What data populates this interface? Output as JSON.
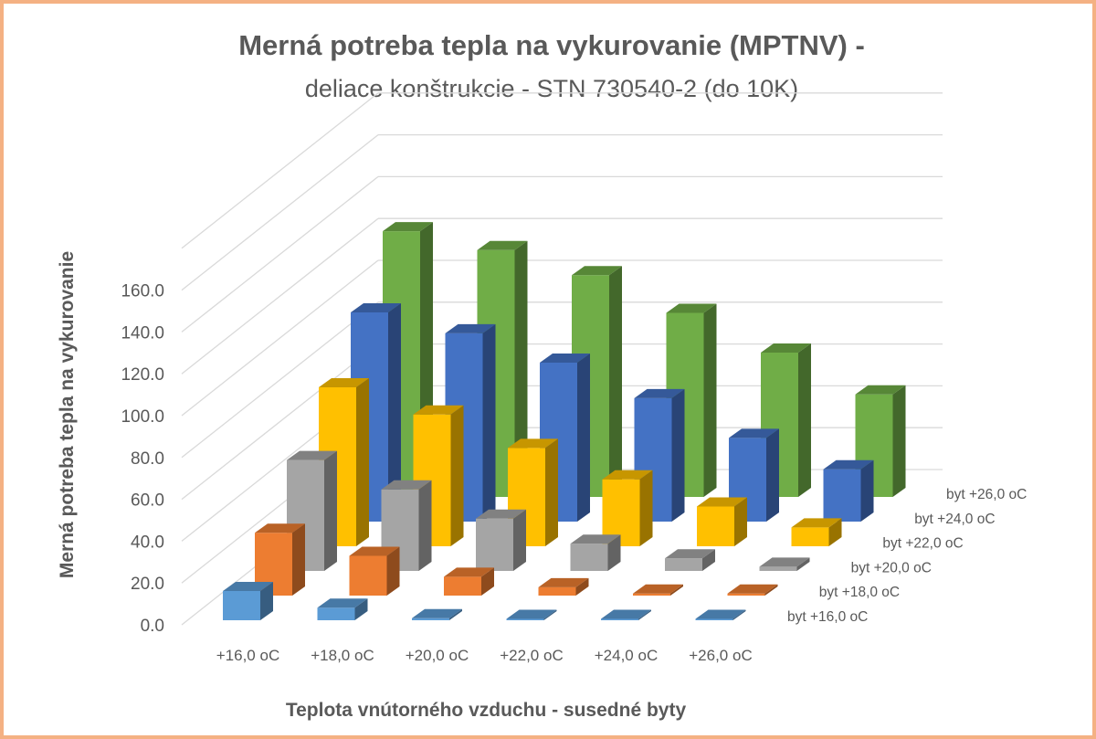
{
  "chart_data": {
    "type": "bar",
    "variant": "3d-column",
    "title": "Merná potreba tepla na vykurovanie (MPTNV) -",
    "subtitle": "deliace konštrukcie - STN 730540-2 (do 10K)",
    "xlabel": "Teplota vnútorného vzduchu - susedné byty",
    "ylabel": "Merná potreba tepla na vykurovanie",
    "categories": [
      "+16,0 oC",
      "+18,0 oC",
      "+20,0 oC",
      "+22,0 oC",
      "+24,0 oC",
      "+26,0 oC"
    ],
    "yticks": [
      "0.0",
      "20.0",
      "40.0",
      "60.0",
      "80.0",
      "100.0",
      "120.0",
      "140.0",
      "160.0"
    ],
    "ylim": [
      0,
      160
    ],
    "grid": true,
    "legend": "depth-axis-right",
    "series": [
      {
        "name": "byt +16,0 oC",
        "color": "#5b9bd5",
        "values": [
          14,
          6,
          1,
          0.5,
          0.5,
          0.5
        ]
      },
      {
        "name": "byt +18,0 oC",
        "color": "#ed7d31",
        "values": [
          30,
          19,
          9,
          4,
          1,
          1
        ]
      },
      {
        "name": "byt +20,0 oC",
        "color": "#a5a5a5",
        "values": [
          53,
          39,
          25,
          13,
          6,
          2
        ]
      },
      {
        "name": "byt +22,0 oC",
        "color": "#ffc000",
        "values": [
          76,
          63,
          47,
          32,
          19,
          9
        ]
      },
      {
        "name": "byt +24,0 oC",
        "color": "#4472c4",
        "values": [
          100,
          90,
          76,
          59,
          40,
          25
        ]
      },
      {
        "name": "byt +26,0 oC",
        "color": "#70ad47",
        "values": [
          127,
          118,
          106,
          88,
          69,
          49
        ]
      }
    ],
    "frame_color": "#f4b183"
  }
}
